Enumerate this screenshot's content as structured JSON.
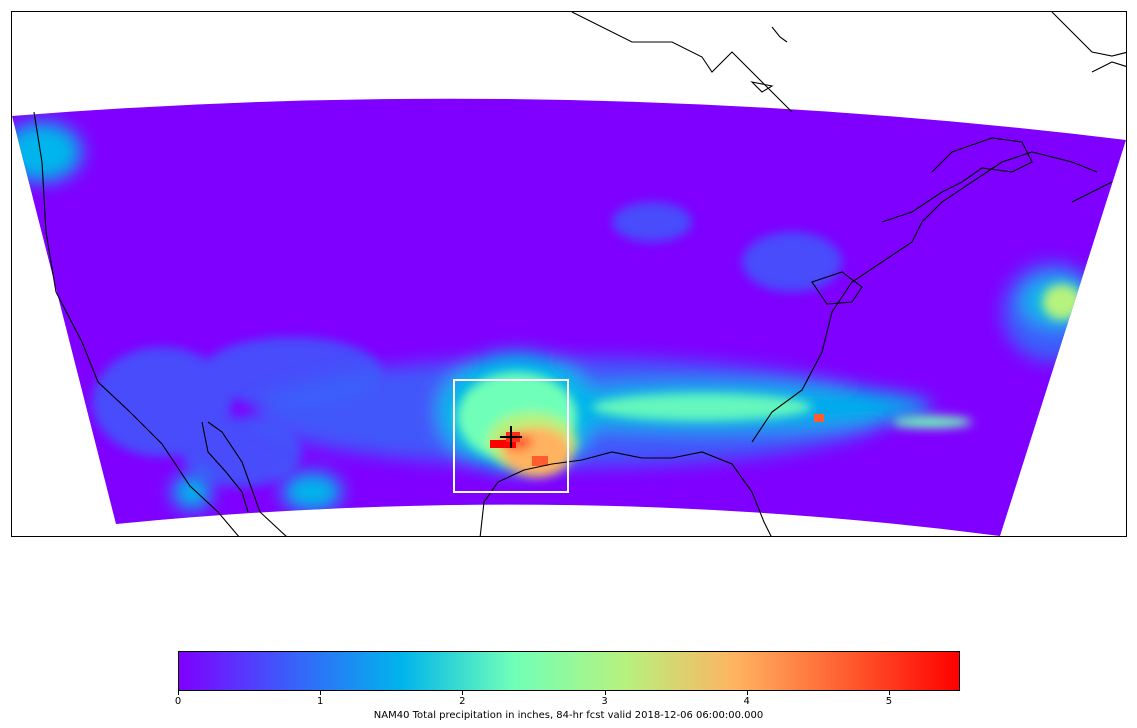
{
  "map": {
    "model": "NAM40",
    "variable": "Total precipitation",
    "units": "inches",
    "projection": "lambert-conformal",
    "region": "CONUS",
    "marker": "plus",
    "highlight_box": "white rectangle around Texas / Louisiana coast"
  },
  "colorbar": {
    "colormap": "rainbow",
    "stops": [
      "#7f00ff",
      "#3a5ffa",
      "#00b5eb",
      "#70ffb8",
      "#b6f27e",
      "#ffb360",
      "#ff5c2f",
      "#ff0000"
    ],
    "min": 0,
    "max": 5.5,
    "ticks": [
      "0",
      "1",
      "2",
      "3",
      "4",
      "5"
    ],
    "caption": "NAM40 Total precipitation in inches, 84-hr fcst valid 2018-12-06 06:00:00.000"
  }
}
